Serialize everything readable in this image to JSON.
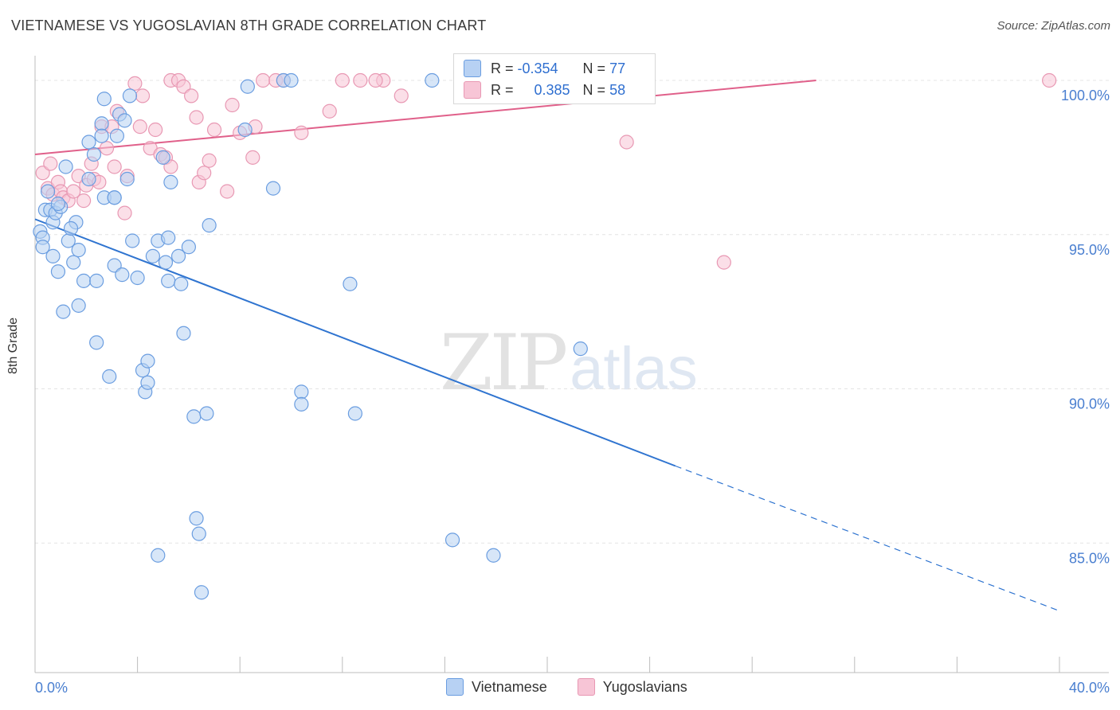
{
  "title": "VIETNAMESE VS YUGOSLAVIAN 8TH GRADE CORRELATION CHART",
  "source": "Source: ZipAtlas.com",
  "watermark": {
    "zip": "ZIP",
    "atlas": "atlas"
  },
  "stats": {
    "row1": {
      "r_label": "R =",
      "r_value": "-0.354",
      "n_label": "N =",
      "n_value": "77"
    },
    "row2": {
      "r_label": "R =",
      "r_value": "0.385",
      "n_label": "N =",
      "n_value": "58"
    }
  },
  "legend": {
    "vietnamese": "Vietnamese",
    "yugoslavians": "Yugoslavians"
  },
  "colors": {
    "vietnamese_fill": "#b7d1f3",
    "vietnamese_stroke": "#6a9de0",
    "vietnamese_line": "#2f74d0",
    "yugoslavians_fill": "#f7c5d6",
    "yugoslavians_stroke": "#e898b3",
    "yugoslavians_line": "#e0608a",
    "axis_text": "#4a7fd0"
  },
  "chart_data": {
    "type": "scatter",
    "title": "VIETNAMESE VS YUGOSLAVIAN 8TH GRADE CORRELATION CHART",
    "xlabel": "",
    "ylabel": "8th Grade",
    "xlim": [
      0,
      40
    ],
    "ylim": [
      80.8,
      100.8
    ],
    "x_tick_labels": [
      "0.0%",
      "40.0%"
    ],
    "y_ticks": [
      85,
      90,
      95,
      100
    ],
    "y_tick_labels": [
      "85.0%",
      "90.0%",
      "95.0%",
      "100.0%"
    ],
    "grid": true,
    "legend_position": "bottom-center",
    "series": [
      {
        "name": "Vietnamese",
        "R": -0.354,
        "N": 77,
        "trend": {
          "x0": 0,
          "y0": 95.5,
          "x1": 25.0,
          "y1": 87.5,
          "x_dash_end": 40,
          "y_dash_end": 82.8
        },
        "points": [
          [
            0.2,
            95.1
          ],
          [
            0.3,
            94.9
          ],
          [
            0.3,
            94.6
          ],
          [
            0.4,
            95.8
          ],
          [
            0.5,
            96.4
          ],
          [
            0.6,
            95.8
          ],
          [
            0.7,
            95.4
          ],
          [
            0.8,
            95.7
          ],
          [
            0.7,
            94.3
          ],
          [
            0.9,
            93.8
          ],
          [
            1.1,
            92.5
          ],
          [
            1.2,
            97.2
          ],
          [
            1.3,
            94.8
          ],
          [
            1.5,
            94.1
          ],
          [
            1.6,
            95.4
          ],
          [
            1.7,
            94.5
          ],
          [
            1.7,
            92.7
          ],
          [
            1.9,
            93.5
          ],
          [
            2.1,
            96.8
          ],
          [
            2.1,
            98.0
          ],
          [
            2.3,
            97.6
          ],
          [
            2.4,
            93.5
          ],
          [
            2.4,
            91.5
          ],
          [
            2.6,
            98.6
          ],
          [
            2.6,
            98.2
          ],
          [
            2.7,
            96.2
          ],
          [
            2.7,
            99.4
          ],
          [
            2.9,
            90.4
          ],
          [
            3.1,
            96.2
          ],
          [
            3.1,
            94.0
          ],
          [
            3.2,
            98.2
          ],
          [
            3.3,
            98.9
          ],
          [
            3.4,
            93.7
          ],
          [
            3.5,
            98.7
          ],
          [
            3.6,
            96.8
          ],
          [
            3.7,
            99.5
          ],
          [
            3.8,
            94.8
          ],
          [
            4.0,
            93.6
          ],
          [
            4.2,
            90.6
          ],
          [
            4.3,
            89.9
          ],
          [
            4.4,
            90.9
          ],
          [
            4.4,
            90.2
          ],
          [
            4.6,
            94.3
          ],
          [
            4.8,
            94.8
          ],
          [
            4.8,
            84.6
          ],
          [
            5.0,
            97.5
          ],
          [
            5.1,
            94.1
          ],
          [
            5.2,
            93.5
          ],
          [
            5.2,
            94.9
          ],
          [
            5.3,
            96.7
          ],
          [
            5.6,
            94.3
          ],
          [
            5.7,
            93.4
          ],
          [
            5.8,
            91.8
          ],
          [
            6.0,
            94.6
          ],
          [
            6.2,
            89.1
          ],
          [
            6.3,
            85.8
          ],
          [
            6.4,
            85.3
          ],
          [
            6.5,
            83.4
          ],
          [
            6.7,
            89.2
          ],
          [
            6.8,
            95.3
          ],
          [
            8.2,
            98.4
          ],
          [
            8.3,
            99.8
          ],
          [
            9.3,
            96.5
          ],
          [
            9.7,
            100.0
          ],
          [
            10.0,
            100.0
          ],
          [
            10.4,
            89.9
          ],
          [
            10.4,
            89.5
          ],
          [
            12.3,
            93.4
          ],
          [
            12.5,
            89.2
          ],
          [
            15.5,
            100.0
          ],
          [
            16.3,
            85.1
          ],
          [
            17.9,
            84.6
          ],
          [
            21.3,
            91.3
          ],
          [
            1.0,
            95.9
          ],
          [
            3.1,
            96.2
          ],
          [
            0.9,
            96.0
          ],
          [
            1.4,
            95.2
          ]
        ]
      },
      {
        "name": "Yugoslavians",
        "R": 0.385,
        "N": 58,
        "trend": {
          "x0": 0,
          "y0": 97.6,
          "x1": 30.5,
          "y1": 100.0
        },
        "points": [
          [
            0.3,
            97.0
          ],
          [
            0.5,
            96.5
          ],
          [
            0.6,
            97.3
          ],
          [
            0.7,
            96.3
          ],
          [
            0.9,
            96.7
          ],
          [
            1.0,
            96.4
          ],
          [
            1.1,
            96.2
          ],
          [
            1.3,
            96.1
          ],
          [
            1.5,
            96.4
          ],
          [
            1.7,
            96.9
          ],
          [
            1.9,
            96.1
          ],
          [
            2.0,
            96.6
          ],
          [
            2.2,
            97.3
          ],
          [
            2.3,
            96.8
          ],
          [
            2.5,
            96.7
          ],
          [
            2.6,
            98.5
          ],
          [
            2.8,
            97.8
          ],
          [
            3.0,
            98.5
          ],
          [
            3.1,
            97.2
          ],
          [
            3.2,
            99.0
          ],
          [
            3.5,
            95.7
          ],
          [
            3.6,
            96.9
          ],
          [
            3.9,
            99.9
          ],
          [
            4.1,
            98.5
          ],
          [
            4.2,
            99.5
          ],
          [
            4.5,
            97.8
          ],
          [
            4.7,
            98.4
          ],
          [
            4.9,
            97.6
          ],
          [
            5.1,
            97.5
          ],
          [
            5.3,
            97.2
          ],
          [
            5.3,
            100.0
          ],
          [
            5.6,
            100.0
          ],
          [
            5.8,
            99.8
          ],
          [
            6.1,
            99.5
          ],
          [
            6.3,
            98.8
          ],
          [
            6.4,
            96.7
          ],
          [
            6.6,
            97.0
          ],
          [
            6.8,
            97.4
          ],
          [
            7.0,
            98.4
          ],
          [
            7.5,
            96.4
          ],
          [
            7.7,
            99.2
          ],
          [
            8.0,
            98.3
          ],
          [
            8.5,
            97.5
          ],
          [
            8.6,
            98.5
          ],
          [
            8.9,
            100.0
          ],
          [
            9.4,
            100.0
          ],
          [
            9.7,
            100.0
          ],
          [
            10.4,
            98.3
          ],
          [
            11.5,
            99.0
          ],
          [
            12.0,
            100.0
          ],
          [
            12.7,
            100.0
          ],
          [
            13.6,
            100.0
          ],
          [
            14.3,
            99.5
          ],
          [
            21.2,
            100.0
          ],
          [
            23.1,
            98.0
          ],
          [
            26.9,
            94.1
          ],
          [
            39.6,
            100.0
          ],
          [
            13.3,
            100.0
          ]
        ]
      }
    ]
  }
}
